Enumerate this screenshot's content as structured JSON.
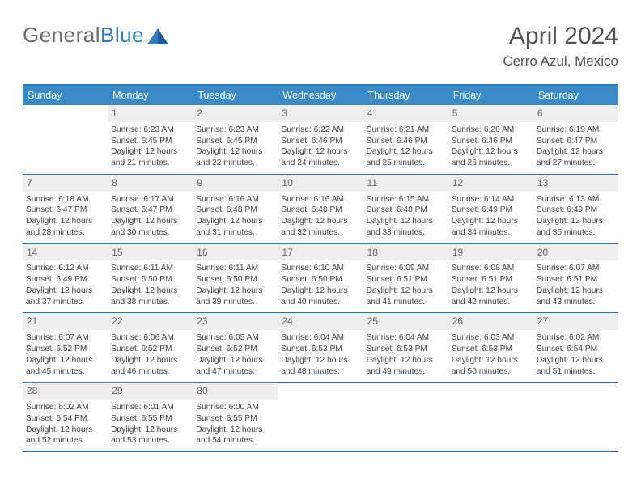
{
  "colors": {
    "header_bar": "#3a8ac8",
    "border": "#2f7bbf",
    "daynum_bg": "#eeeeee",
    "text": "#444444",
    "title_text": "#555555",
    "logo_gray": "#6e6e6e",
    "logo_blue": "#2f7bbf",
    "background": "#ffffff"
  },
  "typography": {
    "title_fontsize": 30,
    "location_fontsize": 17,
    "dow_fontsize": 12.5,
    "daynum_fontsize": 12,
    "body_fontsize": 10.2,
    "font_family": "Arial"
  },
  "logo": {
    "text_gray": "General",
    "text_blue": "Blue"
  },
  "title": "April 2024",
  "location": "Cerro Azul, Mexico",
  "dow": [
    "Sunday",
    "Monday",
    "Tuesday",
    "Wednesday",
    "Thursday",
    "Friday",
    "Saturday"
  ],
  "weeks": [
    [
      {
        "empty": true
      },
      {
        "n": "1",
        "sunrise": "Sunrise: 6:23 AM",
        "sunset": "Sunset: 6:45 PM",
        "daylight": "Daylight: 12 hours and 21 minutes."
      },
      {
        "n": "2",
        "sunrise": "Sunrise: 6:23 AM",
        "sunset": "Sunset: 6:45 PM",
        "daylight": "Daylight: 12 hours and 22 minutes."
      },
      {
        "n": "3",
        "sunrise": "Sunrise: 6:22 AM",
        "sunset": "Sunset: 6:46 PM",
        "daylight": "Daylight: 12 hours and 24 minutes."
      },
      {
        "n": "4",
        "sunrise": "Sunrise: 6:21 AM",
        "sunset": "Sunset: 6:46 PM",
        "daylight": "Daylight: 12 hours and 25 minutes."
      },
      {
        "n": "5",
        "sunrise": "Sunrise: 6:20 AM",
        "sunset": "Sunset: 6:46 PM",
        "daylight": "Daylight: 12 hours and 26 minutes."
      },
      {
        "n": "6",
        "sunrise": "Sunrise: 6:19 AM",
        "sunset": "Sunset: 6:47 PM",
        "daylight": "Daylight: 12 hours and 27 minutes."
      }
    ],
    [
      {
        "n": "7",
        "sunrise": "Sunrise: 6:18 AM",
        "sunset": "Sunset: 6:47 PM",
        "daylight": "Daylight: 12 hours and 28 minutes."
      },
      {
        "n": "8",
        "sunrise": "Sunrise: 6:17 AM",
        "sunset": "Sunset: 6:47 PM",
        "daylight": "Daylight: 12 hours and 30 minutes."
      },
      {
        "n": "9",
        "sunrise": "Sunrise: 6:16 AM",
        "sunset": "Sunset: 6:48 PM",
        "daylight": "Daylight: 12 hours and 31 minutes."
      },
      {
        "n": "10",
        "sunrise": "Sunrise: 6:16 AM",
        "sunset": "Sunset: 6:48 PM",
        "daylight": "Daylight: 12 hours and 32 minutes."
      },
      {
        "n": "11",
        "sunrise": "Sunrise: 6:15 AM",
        "sunset": "Sunset: 6:48 PM",
        "daylight": "Daylight: 12 hours and 33 minutes."
      },
      {
        "n": "12",
        "sunrise": "Sunrise: 6:14 AM",
        "sunset": "Sunset: 6:49 PM",
        "daylight": "Daylight: 12 hours and 34 minutes."
      },
      {
        "n": "13",
        "sunrise": "Sunrise: 6:13 AM",
        "sunset": "Sunset: 6:49 PM",
        "daylight": "Daylight: 12 hours and 35 minutes."
      }
    ],
    [
      {
        "n": "14",
        "sunrise": "Sunrise: 6:12 AM",
        "sunset": "Sunset: 6:49 PM",
        "daylight": "Daylight: 12 hours and 37 minutes."
      },
      {
        "n": "15",
        "sunrise": "Sunrise: 6:11 AM",
        "sunset": "Sunset: 6:50 PM",
        "daylight": "Daylight: 12 hours and 38 minutes."
      },
      {
        "n": "16",
        "sunrise": "Sunrise: 6:11 AM",
        "sunset": "Sunset: 6:50 PM",
        "daylight": "Daylight: 12 hours and 39 minutes."
      },
      {
        "n": "17",
        "sunrise": "Sunrise: 6:10 AM",
        "sunset": "Sunset: 6:50 PM",
        "daylight": "Daylight: 12 hours and 40 minutes."
      },
      {
        "n": "18",
        "sunrise": "Sunrise: 6:09 AM",
        "sunset": "Sunset: 6:51 PM",
        "daylight": "Daylight: 12 hours and 41 minutes."
      },
      {
        "n": "19",
        "sunrise": "Sunrise: 6:08 AM",
        "sunset": "Sunset: 6:51 PM",
        "daylight": "Daylight: 12 hours and 42 minutes."
      },
      {
        "n": "20",
        "sunrise": "Sunrise: 6:07 AM",
        "sunset": "Sunset: 6:51 PM",
        "daylight": "Daylight: 12 hours and 43 minutes."
      }
    ],
    [
      {
        "n": "21",
        "sunrise": "Sunrise: 6:07 AM",
        "sunset": "Sunset: 6:52 PM",
        "daylight": "Daylight: 12 hours and 45 minutes."
      },
      {
        "n": "22",
        "sunrise": "Sunrise: 6:06 AM",
        "sunset": "Sunset: 6:52 PM",
        "daylight": "Daylight: 12 hours and 46 minutes."
      },
      {
        "n": "23",
        "sunrise": "Sunrise: 6:05 AM",
        "sunset": "Sunset: 6:52 PM",
        "daylight": "Daylight: 12 hours and 47 minutes."
      },
      {
        "n": "24",
        "sunrise": "Sunrise: 6:04 AM",
        "sunset": "Sunset: 6:53 PM",
        "daylight": "Daylight: 12 hours and 48 minutes."
      },
      {
        "n": "25",
        "sunrise": "Sunrise: 6:04 AM",
        "sunset": "Sunset: 6:53 PM",
        "daylight": "Daylight: 12 hours and 49 minutes."
      },
      {
        "n": "26",
        "sunrise": "Sunrise: 6:03 AM",
        "sunset": "Sunset: 6:53 PM",
        "daylight": "Daylight: 12 hours and 50 minutes."
      },
      {
        "n": "27",
        "sunrise": "Sunrise: 6:02 AM",
        "sunset": "Sunset: 6:54 PM",
        "daylight": "Daylight: 12 hours and 51 minutes."
      }
    ],
    [
      {
        "n": "28",
        "sunrise": "Sunrise: 6:02 AM",
        "sunset": "Sunset: 6:54 PM",
        "daylight": "Daylight: 12 hours and 52 minutes."
      },
      {
        "n": "29",
        "sunrise": "Sunrise: 6:01 AM",
        "sunset": "Sunset: 6:55 PM",
        "daylight": "Daylight: 12 hours and 53 minutes."
      },
      {
        "n": "30",
        "sunrise": "Sunrise: 6:00 AM",
        "sunset": "Sunset: 6:55 PM",
        "daylight": "Daylight: 12 hours and 54 minutes."
      },
      {
        "empty": true
      },
      {
        "empty": true
      },
      {
        "empty": true
      },
      {
        "empty": true
      }
    ]
  ]
}
